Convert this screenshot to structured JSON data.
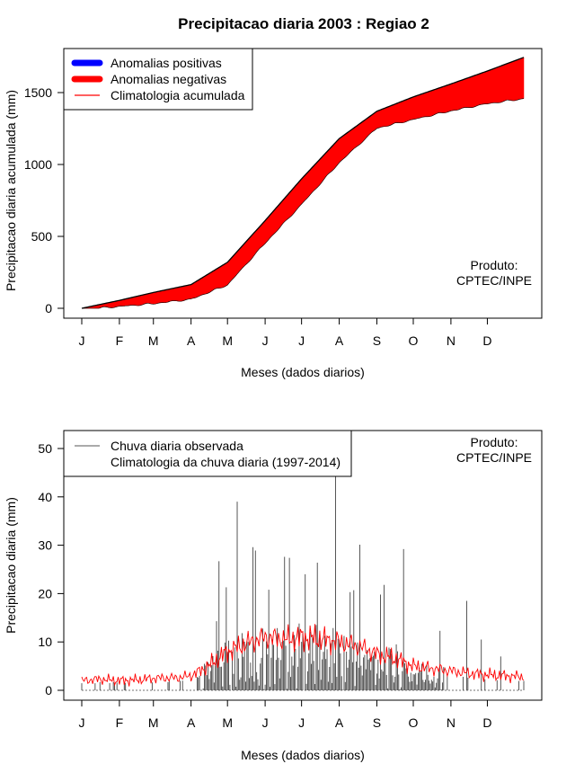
{
  "title": "Precipitacao diaria 2003 : Regiao 2",
  "chart_data": [
    {
      "type": "area",
      "name": "accumulated",
      "ylabel": "Precipitacao diaria acumulada (mm)",
      "xlabel": "Meses (dados diarios)",
      "ylim": [
        0,
        1800
      ],
      "yticks": [
        0,
        500,
        1000,
        1500
      ],
      "months": [
        "J",
        "F",
        "M",
        "A",
        "M",
        "J",
        "J",
        "A",
        "S",
        "O",
        "N",
        "D"
      ],
      "legend": [
        {
          "label": "Anomalias positivas",
          "color": "#0000ff",
          "kind": "thick"
        },
        {
          "label": "Anomalias negativas",
          "color": "#ff0000",
          "kind": "thick"
        },
        {
          "label": "Climatologia acumulada",
          "color": "#000000",
          "kind": "thin"
        }
      ],
      "note": [
        "Produto:",
        "CPTEC/INPE"
      ],
      "climatology_accumulated": {
        "day": [
          1,
          32,
          60,
          91,
          121,
          152,
          182,
          213,
          244,
          274,
          305,
          335,
          365
        ],
        "value": [
          0,
          55,
          110,
          165,
          320,
          610,
          900,
          1180,
          1370,
          1470,
          1560,
          1650,
          1745
        ]
      },
      "observed_accumulated": {
        "day": [
          1,
          32,
          60,
          91,
          121,
          152,
          182,
          213,
          244,
          274,
          305,
          335,
          365
        ],
        "value": [
          0,
          20,
          40,
          70,
          170,
          460,
          730,
          1020,
          1260,
          1320,
          1380,
          1430,
          1465
        ]
      },
      "colors": {
        "positive": "#0000ff",
        "negative": "#ff0000",
        "climatology": "#000000"
      }
    },
    {
      "type": "bar",
      "name": "daily",
      "ylabel": "Precipitacao diaria (mm)",
      "xlabel": "Meses (dados diarios)",
      "ylim": [
        0,
        55
      ],
      "yticks": [
        0,
        10,
        20,
        30,
        40,
        50
      ],
      "months": [
        "J",
        "F",
        "M",
        "A",
        "M",
        "J",
        "J",
        "A",
        "S",
        "O",
        "N",
        "D"
      ],
      "legend": [
        {
          "label": "Chuva diaria observada",
          "color": "#555555",
          "kind": "thin"
        },
        {
          "label": "Climatologia da chuva diaria (1997-2014)",
          "color": "#ff0000",
          "kind": "thin"
        }
      ],
      "note": [
        "Produto:",
        "CPTEC/INPE"
      ],
      "observed_peaks": [
        {
          "day": 112,
          "value": 14.3
        },
        {
          "day": 114,
          "value": 26.7
        },
        {
          "day": 120,
          "value": 21.3
        },
        {
          "day": 129,
          "value": 39.0
        },
        {
          "day": 138,
          "value": 10.0
        },
        {
          "day": 142,
          "value": 29.6
        },
        {
          "day": 144,
          "value": 28.9
        },
        {
          "day": 155,
          "value": 20.8
        },
        {
          "day": 168,
          "value": 27.6
        },
        {
          "day": 172,
          "value": 27.4
        },
        {
          "day": 185,
          "value": 24.0
        },
        {
          "day": 195,
          "value": 26.4
        },
        {
          "day": 210,
          "value": 44.5
        },
        {
          "day": 222,
          "value": 20.3
        },
        {
          "day": 225,
          "value": 20.7
        },
        {
          "day": 230,
          "value": 30.1
        },
        {
          "day": 242,
          "value": 8.0
        },
        {
          "day": 247,
          "value": 19.8
        },
        {
          "day": 250,
          "value": 21.8
        },
        {
          "day": 260,
          "value": 9.5
        },
        {
          "day": 266,
          "value": 29.2
        },
        {
          "day": 296,
          "value": 12.3
        },
        {
          "day": 318,
          "value": 18.5
        },
        {
          "day": 330,
          "value": 10.5
        },
        {
          "day": 346,
          "value": 7.0
        }
      ],
      "climatology_daily": {
        "day": [
          1,
          15,
          32,
          50,
          60,
          80,
          91,
          105,
          121,
          140,
          152,
          170,
          182,
          200,
          213,
          230,
          244,
          260,
          274,
          290,
          305,
          320,
          335,
          350,
          365
        ],
        "value": [
          2.0,
          2.3,
          2.0,
          2.2,
          2.5,
          2.6,
          3.0,
          5.0,
          8.0,
          10.0,
          11.0,
          10.5,
          11.0,
          10.5,
          10.0,
          9.0,
          7.5,
          6.5,
          5.0,
          4.5,
          4.0,
          3.5,
          3.2,
          3.0,
          2.8
        ]
      }
    }
  ]
}
